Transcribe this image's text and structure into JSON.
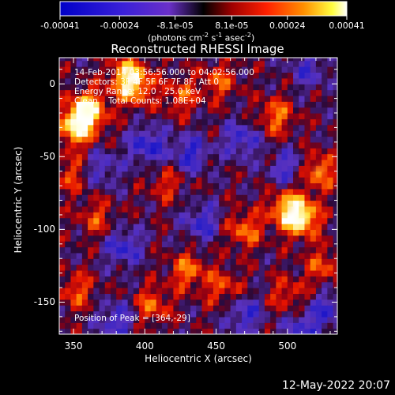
{
  "chart_data": {
    "type": "heatmap",
    "title": "Reconstructed RHESSI Image",
    "xlabel": "Heliocentric X (arcsec)",
    "ylabel": "Heliocentric Y (arcsec)",
    "xlim": [
      340,
      535
    ],
    "ylim": [
      -172,
      18
    ],
    "x_ticks": [
      "350",
      "400",
      "450",
      "500"
    ],
    "x_tick_values": [
      350,
      400,
      450,
      500
    ],
    "y_ticks": [
      "0",
      "-50",
      "-100",
      "-150"
    ],
    "y_tick_values": [
      0,
      -50,
      -100,
      -150
    ],
    "colorbar": {
      "ticks": [
        "-0.00041",
        "-0.00024",
        "-8.1e-05",
        "8.1e-05",
        "0.00024",
        "0.00041"
      ],
      "tick_values": [
        -0.00041,
        -0.00024,
        -8.1e-05,
        8.1e-05,
        0.00024,
        0.00041
      ],
      "range": [
        -0.00041,
        0.00041
      ],
      "unit_label": "(photons cm",
      "unit_sup1": "-2",
      "unit_mid": " s",
      "unit_sup2": "-1",
      "unit_mid2": " asec",
      "unit_sup3": "-2",
      "unit_end": ")"
    },
    "annotations": [
      "14-Feb-2014 03:56:56.000 to 04:02:56.000",
      "Detectors: 3F 4F 5F 6F 7F 8F, Att 0",
      "Energy Range: 12.0 - 25.0 keV",
      "Clean    Total Counts: 1.08E+04"
    ],
    "peak_label": "Position of Peak = [364,-29]",
    "peak_position": [
      364,
      -29
    ],
    "bright_regions": [
      {
        "x": 360,
        "y": -18,
        "level": 0.95
      },
      {
        "x": 352,
        "y": -30,
        "level": 0.85
      },
      {
        "x": 392,
        "y": -2,
        "level": 0.7
      },
      {
        "x": 388,
        "y": 8,
        "level": 0.6
      },
      {
        "x": 492,
        "y": -22,
        "level": 0.55
      },
      {
        "x": 452,
        "y": 2,
        "level": 0.45
      },
      {
        "x": 425,
        "y": -8,
        "level": 0.45
      },
      {
        "x": 510,
        "y": -92,
        "level": 0.85
      },
      {
        "x": 500,
        "y": -85,
        "level": 0.7
      },
      {
        "x": 470,
        "y": -100,
        "level": 0.55
      },
      {
        "x": 522,
        "y": -60,
        "level": 0.6
      },
      {
        "x": 430,
        "y": -128,
        "level": 0.55
      },
      {
        "x": 405,
        "y": -152,
        "level": 0.5
      },
      {
        "x": 455,
        "y": -140,
        "level": 0.45
      },
      {
        "x": 352,
        "y": -142,
        "level": 0.45
      },
      {
        "x": 366,
        "y": -92,
        "level": 0.4
      },
      {
        "x": 348,
        "y": -62,
        "level": 0.4
      },
      {
        "x": 415,
        "y": -68,
        "level": 0.35
      },
      {
        "x": 500,
        "y": -145,
        "level": 0.4
      },
      {
        "x": 525,
        "y": -125,
        "level": 0.45
      }
    ],
    "dim_regions": [
      {
        "x": 402,
        "y": -42,
        "level": -0.6
      },
      {
        "x": 432,
        "y": -48,
        "level": -0.55
      },
      {
        "x": 468,
        "y": -38,
        "level": -0.5
      },
      {
        "x": 500,
        "y": -58,
        "level": -0.45
      },
      {
        "x": 385,
        "y": -112,
        "level": -0.55
      },
      {
        "x": 440,
        "y": -95,
        "level": -0.5
      },
      {
        "x": 510,
        "y": -168,
        "level": -0.45
      },
      {
        "x": 380,
        "y": -162,
        "level": -0.5
      },
      {
        "x": 470,
        "y": -158,
        "level": -0.5
      },
      {
        "x": 515,
        "y": 10,
        "level": -0.4
      },
      {
        "x": 370,
        "y": -58,
        "level": -0.4
      },
      {
        "x": 528,
        "y": -155,
        "level": -0.45
      }
    ]
  },
  "footer": {
    "date": "12-May-2022 20:07"
  }
}
